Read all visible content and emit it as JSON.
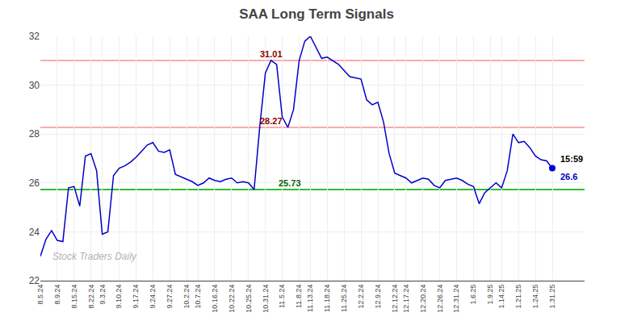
{
  "chart_data": {
    "type": "line",
    "title": "SAA Long Term Signals",
    "categories": [
      "8.5.24",
      null,
      null,
      "8.9.24",
      null,
      null,
      "8.15.24",
      null,
      null,
      "8.22.24",
      null,
      "9.3.24",
      null,
      null,
      "9.10.24",
      null,
      null,
      "9.17.24",
      null,
      null,
      "9.24.24",
      null,
      null,
      "9.27.24",
      null,
      null,
      "10.2.24",
      null,
      "10.7.24",
      null,
      null,
      "10.16.24",
      null,
      null,
      "10.22.24",
      null,
      null,
      "10.25.24",
      null,
      null,
      "10.31.24",
      null,
      null,
      "11.5.24",
      null,
      null,
      "11.8.24",
      null,
      "11.13.24",
      null,
      null,
      "11.18.24",
      null,
      null,
      "11.25.24",
      null,
      null,
      "12.2.24",
      null,
      null,
      "12.9.24",
      null,
      null,
      "12.12.24",
      null,
      "12.17.24",
      null,
      null,
      "12.20.24",
      null,
      null,
      "12.26.24",
      null,
      null,
      "12.31.24",
      null,
      null,
      "1.6.25",
      null,
      null,
      "1.9.25",
      null,
      "1.14.25",
      null,
      null,
      "1.21.25",
      null,
      null,
      "1.24.25",
      null,
      null,
      "1.31.25"
    ],
    "values": [
      23.0,
      23.7,
      24.05,
      23.65,
      23.6,
      25.8,
      25.85,
      25.05,
      27.1,
      27.2,
      26.5,
      23.9,
      24.0,
      26.3,
      26.6,
      26.7,
      26.85,
      27.05,
      27.3,
      27.55,
      27.65,
      27.3,
      27.25,
      27.35,
      26.35,
      26.25,
      26.15,
      26.05,
      25.9,
      26.0,
      26.2,
      26.1,
      26.05,
      26.15,
      26.2,
      26.0,
      26.05,
      26.0,
      25.73,
      28.3,
      30.5,
      31.01,
      30.85,
      28.7,
      28.27,
      29.0,
      31.0,
      31.8,
      32.0,
      31.55,
      31.1,
      31.15,
      31.0,
      30.85,
      30.6,
      30.35,
      30.3,
      30.25,
      29.4,
      29.2,
      29.3,
      28.5,
      27.2,
      26.4,
      26.3,
      26.2,
      26.0,
      26.1,
      26.2,
      26.15,
      25.9,
      25.8,
      26.1,
      26.15,
      26.2,
      26.1,
      25.95,
      25.85,
      25.15,
      25.6,
      25.8,
      26.0,
      25.8,
      26.5,
      28.0,
      27.65,
      27.7,
      27.45,
      27.1,
      26.95,
      26.9,
      26.6
    ],
    "color": "#0000cc",
    "hlines": [
      {
        "value": 25.73,
        "color": "#33bb33",
        "label_color": "darkgreen"
      },
      {
        "value": 28.27,
        "color": "#ffaaaa",
        "label_color": "darkred"
      },
      {
        "value": 31.01,
        "color": "#ffaaaa",
        "label_color": "darkred"
      }
    ],
    "last_point": {
      "time": "15:59",
      "price": "26.6"
    },
    "watermark": "Stock Traders Daily",
    "ylim": [
      22,
      32
    ],
    "yticks": [
      22,
      24,
      26,
      28,
      30,
      32
    ],
    "grid": true
  }
}
